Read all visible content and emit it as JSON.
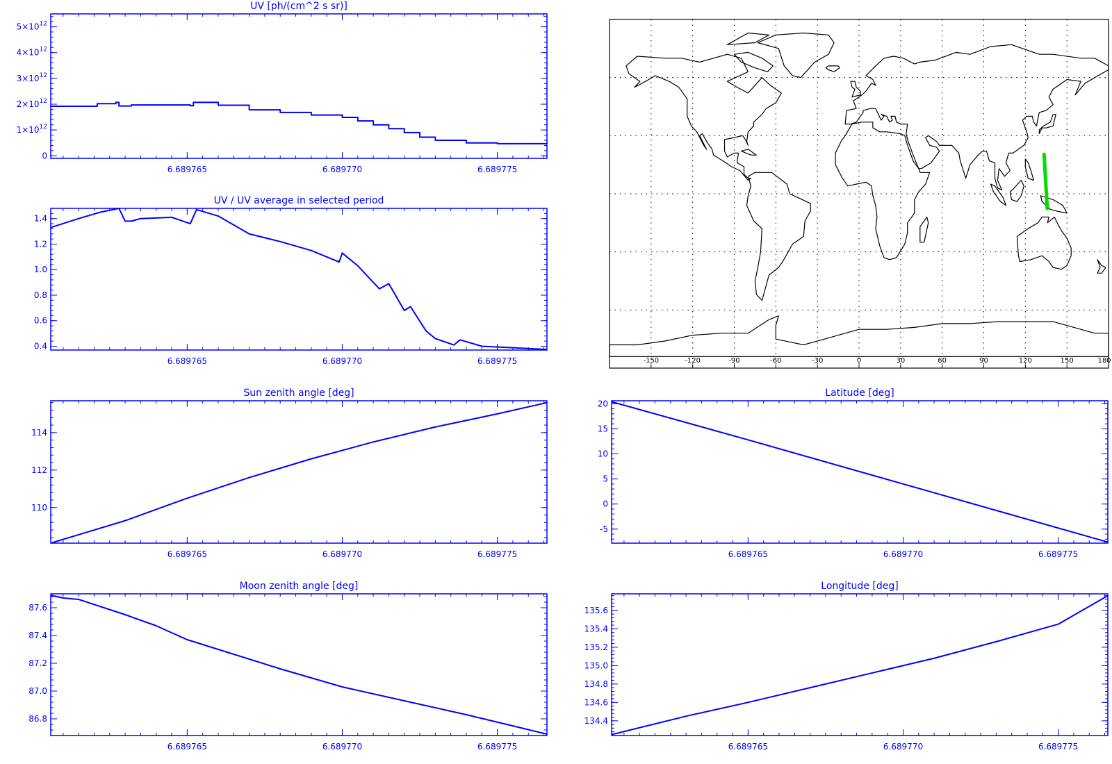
{
  "colors": {
    "plot": "#0000ff",
    "map": "#000000",
    "track": "#00dd00",
    "grid": "#000000"
  },
  "chart_data": [
    {
      "id": "uv",
      "type": "line",
      "step": true,
      "title": "UV [ph/(cm^2 s sr)]",
      "xlim": [
        6.6897606,
        6.6897766
      ],
      "ylim": [
        -100000000000.0,
        5500000000000.0
      ],
      "xticks": [
        "6.689765",
        "6.689770",
        "6.689775"
      ],
      "xtick_values": [
        6.689765,
        6.68977,
        6.689775
      ],
      "yticks": [
        {
          "value": 0,
          "mantissa": "0",
          "exp": ""
        },
        {
          "value": 1000000000000.0,
          "mantissa": "1×10",
          "exp": "12"
        },
        {
          "value": 2000000000000.0,
          "mantissa": "2×10",
          "exp": "12"
        },
        {
          "value": 3000000000000.0,
          "mantissa": "3×10",
          "exp": "12"
        },
        {
          "value": 4000000000000.0,
          "mantissa": "4×10",
          "exp": "12"
        },
        {
          "value": 5000000000000.0,
          "mantissa": "5×10",
          "exp": "12"
        }
      ],
      "points": [
        [
          6.6897606,
          1920000000000.0
        ],
        [
          6.6897621,
          2020000000000.0
        ],
        [
          6.6897627,
          2070000000000.0
        ],
        [
          6.6897628,
          1930000000000.0
        ],
        [
          6.6897632,
          1970000000000.0
        ],
        [
          6.6897651,
          1940000000000.0
        ],
        [
          6.6897652,
          2070000000000.0
        ],
        [
          6.689766,
          1960000000000.0
        ],
        [
          6.689767,
          1780000000000.0
        ],
        [
          6.689768,
          1680000000000.0
        ],
        [
          6.689769,
          1580000000000.0
        ],
        [
          6.68977,
          1490000000000.0
        ],
        [
          6.6897705,
          1350000000000.0
        ],
        [
          6.689771,
          1200000000000.0
        ],
        [
          6.6897715,
          1050000000000.0
        ],
        [
          6.689772,
          900000000000.0
        ],
        [
          6.6897725,
          720000000000.0
        ],
        [
          6.689773,
          600000000000.0
        ],
        [
          6.689774,
          500000000000.0
        ],
        [
          6.689775,
          470000000000.0
        ],
        [
          6.6897766,
          460000000000.0
        ]
      ]
    },
    {
      "id": "uv-ratio",
      "type": "line",
      "title": "UV / UV average in selected period",
      "xlim": [
        6.6897606,
        6.6897766
      ],
      "ylim": [
        0.37,
        1.48
      ],
      "xticks": [
        "6.689765",
        "6.689770",
        "6.689775"
      ],
      "xtick_values": [
        6.689765,
        6.68977,
        6.689775
      ],
      "yticks": [
        {
          "value": 0.4,
          "label": "0.4"
        },
        {
          "value": 0.6,
          "label": "0.6"
        },
        {
          "value": 0.8,
          "label": "0.8"
        },
        {
          "value": 1.0,
          "label": "1.0"
        },
        {
          "value": 1.2,
          "label": "1.2"
        },
        {
          "value": 1.4,
          "label": "1.4"
        }
      ],
      "points": [
        [
          6.6897606,
          1.33
        ],
        [
          6.6897615,
          1.4
        ],
        [
          6.6897622,
          1.45
        ],
        [
          6.6897628,
          1.48
        ],
        [
          6.689763,
          1.38
        ],
        [
          6.6897632,
          1.38
        ],
        [
          6.6897635,
          1.4
        ],
        [
          6.6897645,
          1.41
        ],
        [
          6.6897651,
          1.36
        ],
        [
          6.6897653,
          1.47
        ],
        [
          6.689766,
          1.42
        ],
        [
          6.6897665,
          1.35
        ],
        [
          6.689767,
          1.28
        ],
        [
          6.689768,
          1.22
        ],
        [
          6.689769,
          1.15
        ],
        [
          6.6897699,
          1.06
        ],
        [
          6.68977,
          1.13
        ],
        [
          6.6897705,
          1.03
        ],
        [
          6.689771,
          0.9
        ],
        [
          6.6897712,
          0.85
        ],
        [
          6.6897715,
          0.89
        ],
        [
          6.689772,
          0.68
        ],
        [
          6.6897722,
          0.71
        ],
        [
          6.6897727,
          0.52
        ],
        [
          6.689773,
          0.46
        ],
        [
          6.6897736,
          0.41
        ],
        [
          6.6897738,
          0.45
        ],
        [
          6.6897745,
          0.4
        ],
        [
          6.6897766,
          0.375
        ]
      ]
    },
    {
      "id": "sun-zenith",
      "type": "line",
      "title": "Sun zenith angle [deg]",
      "xlim": [
        6.6897606,
        6.6897766
      ],
      "ylim": [
        108.1,
        115.7
      ],
      "xticks": [
        "6.689765",
        "6.689770",
        "6.689775"
      ],
      "xtick_values": [
        6.689765,
        6.68977,
        6.689775
      ],
      "yticks": [
        {
          "value": 110,
          "label": "110"
        },
        {
          "value": 112,
          "label": "112"
        },
        {
          "value": 114,
          "label": "114"
        }
      ],
      "points": [
        [
          6.6897606,
          108.1
        ],
        [
          6.689763,
          109.3
        ],
        [
          6.689765,
          110.5
        ],
        [
          6.689767,
          111.6
        ],
        [
          6.689769,
          112.6
        ],
        [
          6.689771,
          113.5
        ],
        [
          6.689773,
          114.3
        ],
        [
          6.689775,
          115.0
        ],
        [
          6.6897766,
          115.6
        ]
      ]
    },
    {
      "id": "moon-zenith",
      "type": "line",
      "title": "Moon zenith angle [deg]",
      "xlim": [
        6.6897606,
        6.6897766
      ],
      "ylim": [
        86.68,
        87.7
      ],
      "xticks": [
        "6.689765",
        "6.689770",
        "6.689775"
      ],
      "xtick_values": [
        6.689765,
        6.68977,
        6.689775
      ],
      "yticks": [
        {
          "value": 86.8,
          "label": "86.8"
        },
        {
          "value": 87.0,
          "label": "87.0"
        },
        {
          "value": 87.2,
          "label": "87.2"
        },
        {
          "value": 87.4,
          "label": "87.4"
        },
        {
          "value": 87.6,
          "label": "87.6"
        }
      ],
      "points": [
        [
          6.6897606,
          87.69
        ],
        [
          6.689761,
          87.67
        ],
        [
          6.6897615,
          87.66
        ],
        [
          6.689763,
          87.55
        ],
        [
          6.689764,
          87.47
        ],
        [
          6.689765,
          87.37
        ],
        [
          6.689766,
          87.3
        ],
        [
          6.689768,
          87.16
        ],
        [
          6.68977,
          87.03
        ],
        [
          6.689772,
          86.93
        ],
        [
          6.689774,
          86.83
        ],
        [
          6.6897766,
          86.69
        ]
      ]
    },
    {
      "id": "latitude",
      "type": "line",
      "title": "Latitude [deg]",
      "xlim": [
        6.6897606,
        6.6897766
      ],
      "ylim": [
        -7.8,
        20.6
      ],
      "xticks": [
        "6.689765",
        "6.689770",
        "6.689775"
      ],
      "xtick_values": [
        6.689765,
        6.68977,
        6.689775
      ],
      "yticks": [
        {
          "value": -5,
          "label": "-5"
        },
        {
          "value": 0,
          "label": "0"
        },
        {
          "value": 5,
          "label": "5"
        },
        {
          "value": 10,
          "label": "10"
        },
        {
          "value": 15,
          "label": "15"
        },
        {
          "value": 20,
          "label": "20"
        }
      ],
      "points": [
        [
          6.6897606,
          20.4
        ],
        [
          6.689765,
          12.8
        ],
        [
          6.68977,
          4.0
        ],
        [
          6.6897766,
          -7.6
        ]
      ]
    },
    {
      "id": "longitude",
      "type": "line",
      "title": "Longitude [deg]",
      "xlim": [
        6.6897606,
        6.6897766
      ],
      "ylim": [
        134.24,
        135.78
      ],
      "xticks": [
        "6.689765",
        "6.689770",
        "6.689775"
      ],
      "xtick_values": [
        6.689765,
        6.68977,
        6.689775
      ],
      "yticks": [
        {
          "value": 134.4,
          "label": "134.4"
        },
        {
          "value": 134.6,
          "label": "134.6"
        },
        {
          "value": 134.8,
          "label": "134.8"
        },
        {
          "value": 135.0,
          "label": "135.0"
        },
        {
          "value": 135.2,
          "label": "135.2"
        },
        {
          "value": 135.4,
          "label": "135.4"
        },
        {
          "value": 135.6,
          "label": "135.6"
        }
      ],
      "points": [
        [
          6.6897606,
          134.25
        ],
        [
          6.689763,
          134.45
        ],
        [
          6.689765,
          134.6
        ],
        [
          6.689767,
          134.76
        ],
        [
          6.689769,
          134.92
        ],
        [
          6.689771,
          135.08
        ],
        [
          6.689773,
          135.26
        ],
        [
          6.689775,
          135.45
        ],
        [
          6.6897766,
          135.76
        ]
      ]
    },
    {
      "id": "map",
      "type": "map",
      "xlim": [
        -180,
        180
      ],
      "ylim": [
        -90,
        90
      ],
      "xticks": [
        "-150",
        "-120",
        "-90",
        "-60",
        "-30",
        "0",
        "30",
        "60",
        "90",
        "120",
        "150",
        "180"
      ],
      "xtick_values": [
        -150,
        -120,
        -90,
        -60,
        -30,
        0,
        30,
        60,
        90,
        120,
        150,
        180
      ],
      "grid": true,
      "track": [
        [
          133.5,
          20.4
        ],
        [
          135.8,
          -7.6
        ]
      ]
    }
  ]
}
